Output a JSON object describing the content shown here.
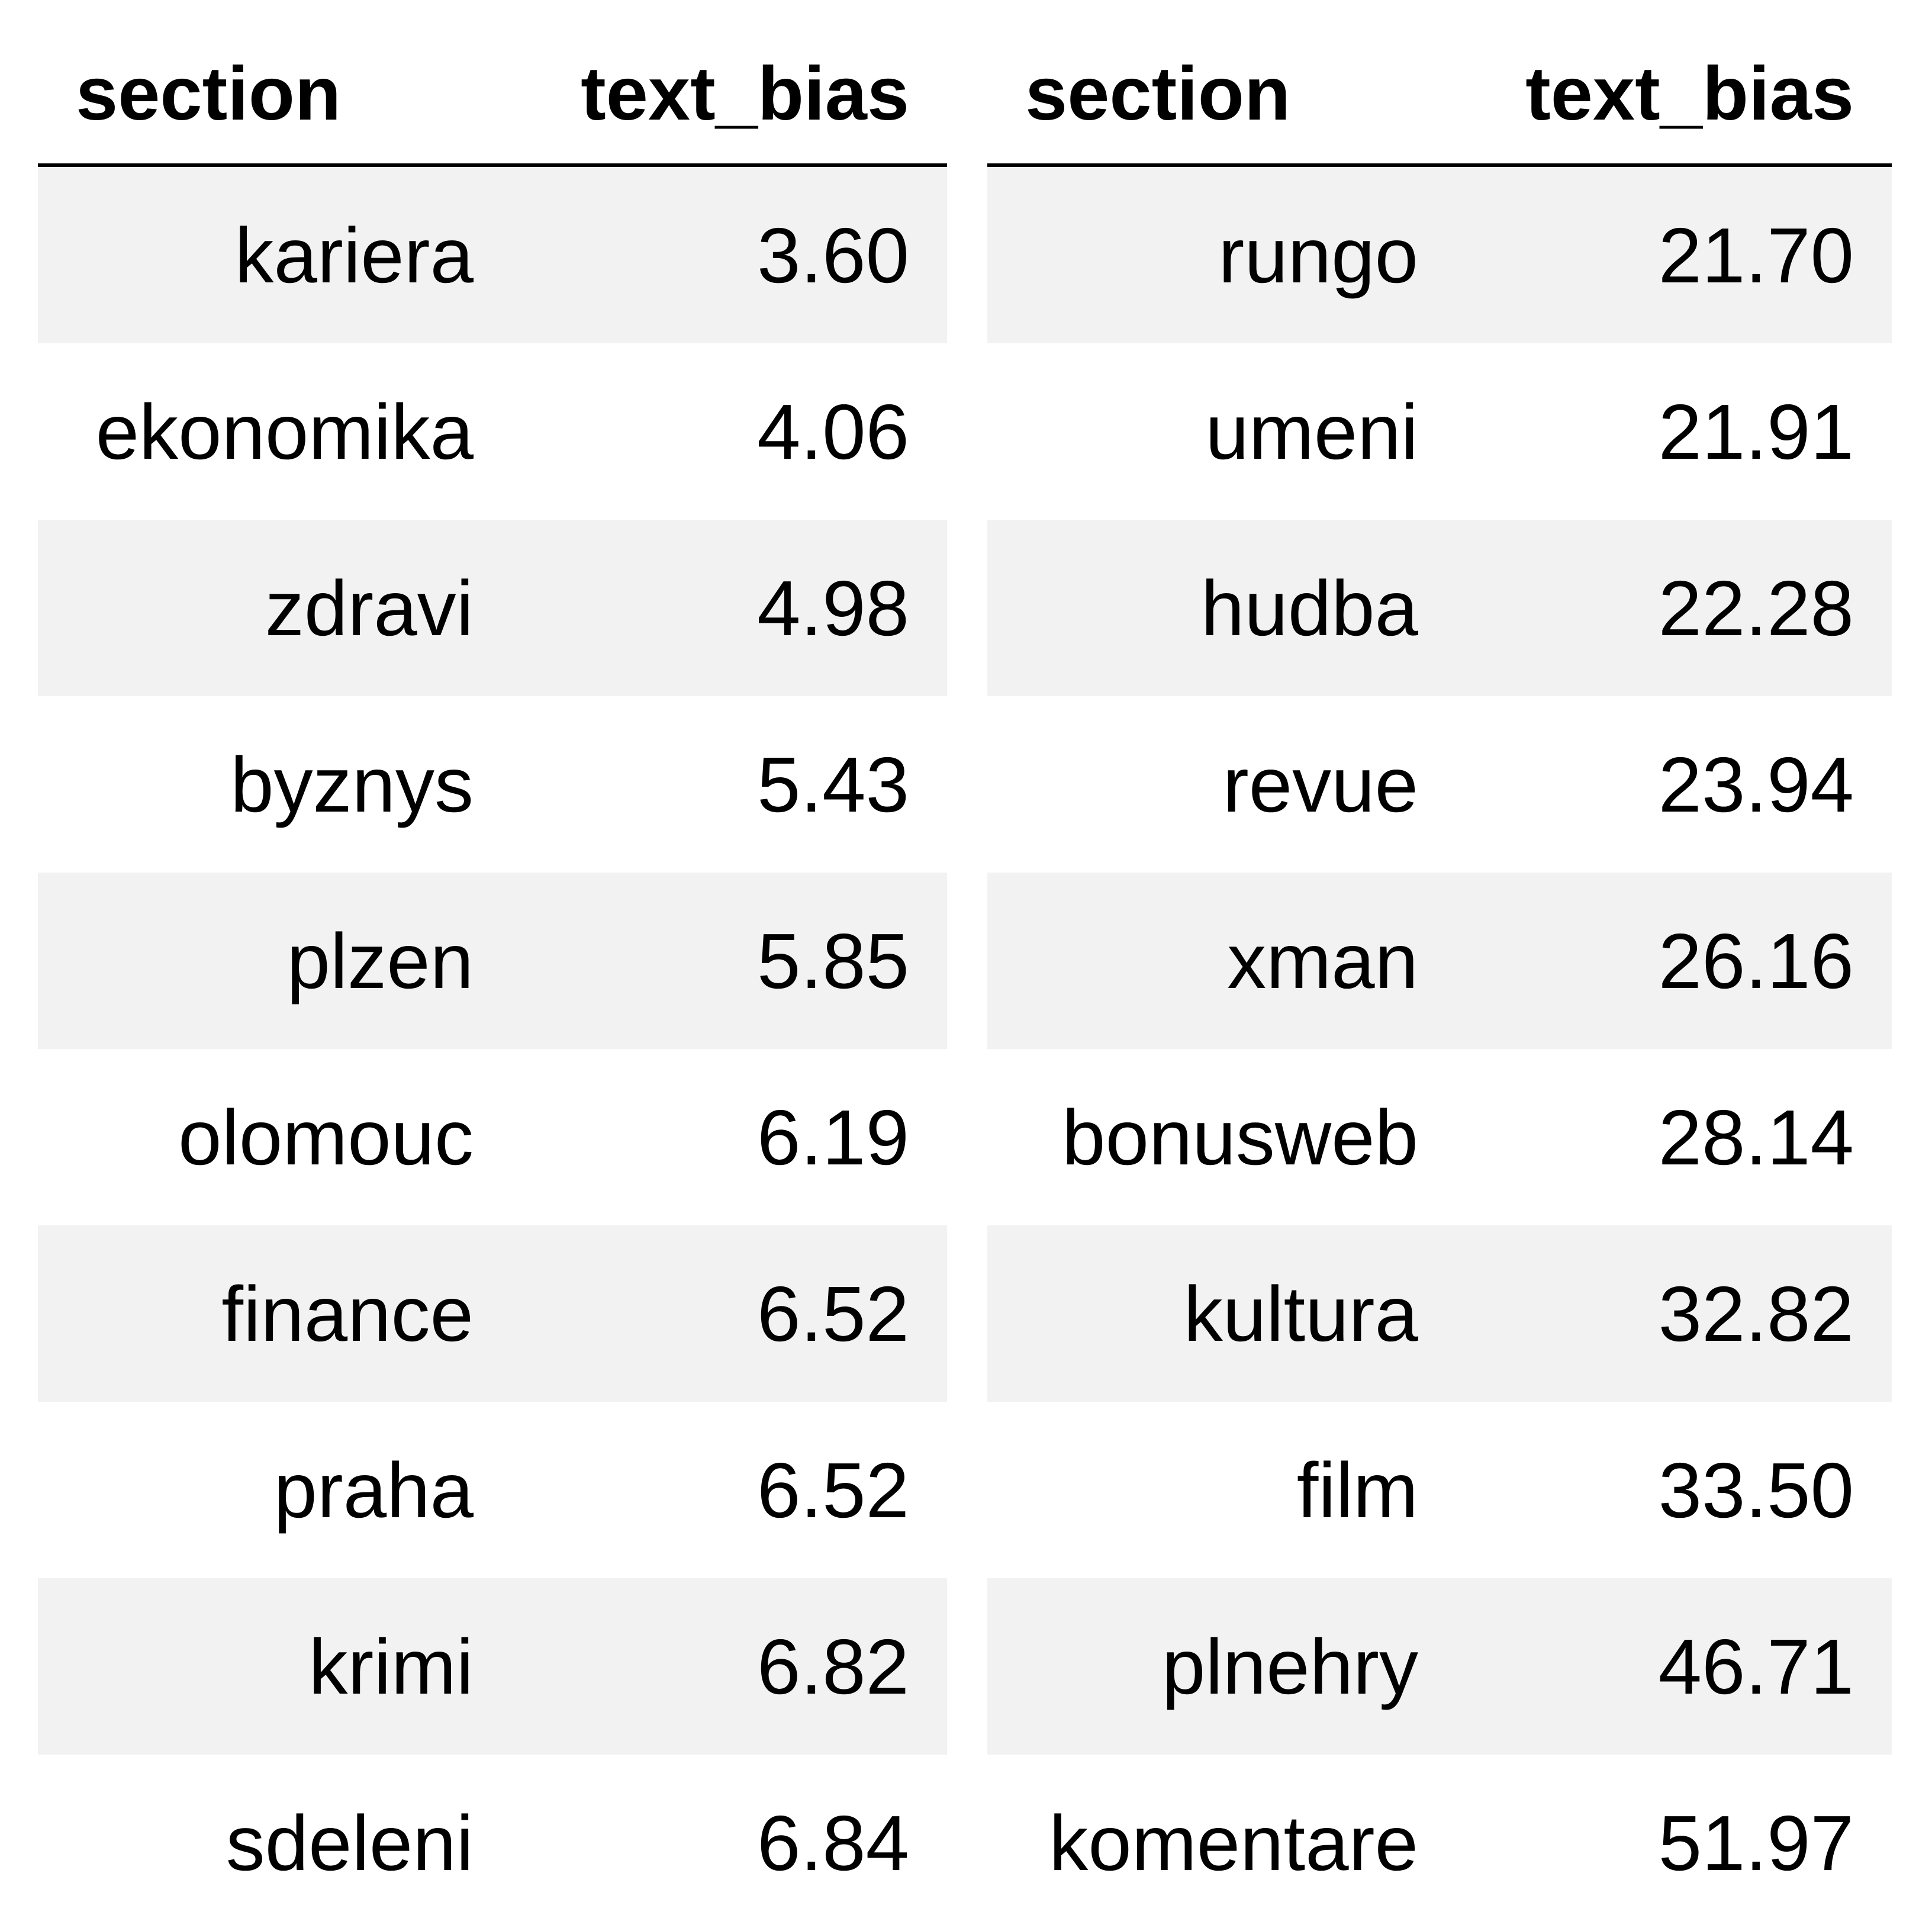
{
  "tables": [
    {
      "columns": [
        "section",
        "text_bias"
      ],
      "rows": [
        [
          "kariera",
          "3.60"
        ],
        [
          "ekonomika",
          "4.06"
        ],
        [
          "zdravi",
          "4.98"
        ],
        [
          "byznys",
          "5.43"
        ],
        [
          "plzen",
          "5.85"
        ],
        [
          "olomouc",
          "6.19"
        ],
        [
          "finance",
          "6.52"
        ],
        [
          "praha",
          "6.52"
        ],
        [
          "krimi",
          "6.82"
        ],
        [
          "sdeleni",
          "6.84"
        ]
      ]
    },
    {
      "columns": [
        "section",
        "text_bias"
      ],
      "rows": [
        [
          "rungo",
          "21.70"
        ],
        [
          "umeni",
          "21.91"
        ],
        [
          "hudba",
          "22.28"
        ],
        [
          "revue",
          "23.94"
        ],
        [
          "xman",
          "26.16"
        ],
        [
          "bonusweb",
          "28.14"
        ],
        [
          "kultura",
          "32.82"
        ],
        [
          "film",
          "33.50"
        ],
        [
          "plnehry",
          "46.71"
        ],
        [
          "komentare",
          "51.97"
        ]
      ]
    }
  ],
  "chart_data": {
    "type": "table",
    "tables": [
      {
        "columns": [
          "section",
          "text_bias"
        ],
        "categories": [
          "kariera",
          "ekonomika",
          "zdravi",
          "byznys",
          "plzen",
          "olomouc",
          "finance",
          "praha",
          "krimi",
          "sdeleni"
        ],
        "values": [
          3.6,
          4.06,
          4.98,
          5.43,
          5.85,
          6.19,
          6.52,
          6.52,
          6.82,
          6.84
        ]
      },
      {
        "columns": [
          "section",
          "text_bias"
        ],
        "categories": [
          "rungo",
          "umeni",
          "hudba",
          "revue",
          "xman",
          "bonusweb",
          "kultura",
          "film",
          "plnehry",
          "komentare"
        ],
        "values": [
          21.7,
          21.91,
          22.28,
          23.94,
          26.16,
          28.14,
          32.82,
          33.5,
          46.71,
          51.97
        ]
      }
    ]
  }
}
